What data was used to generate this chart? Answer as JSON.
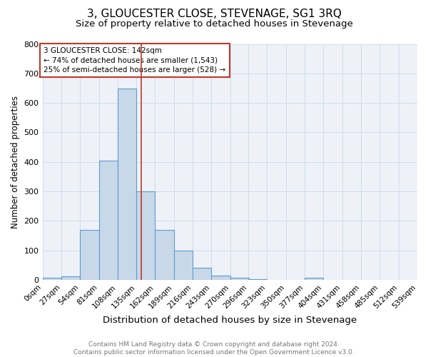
{
  "title": "3, GLOUCESTER CLOSE, STEVENAGE, SG1 3RQ",
  "subtitle": "Size of property relative to detached houses in Stevenage",
  "xlabel": "Distribution of detached houses by size in Stevenage",
  "ylabel": "Number of detached properties",
  "bin_edges": [
    0,
    27,
    54,
    81,
    108,
    135,
    162,
    189,
    216,
    243,
    270,
    296,
    323,
    350,
    377,
    404,
    431,
    458,
    485,
    512,
    539
  ],
  "bar_heights": [
    8,
    13,
    170,
    405,
    648,
    300,
    170,
    98,
    42,
    15,
    8,
    3,
    0,
    0,
    7,
    0,
    0,
    0,
    0,
    0
  ],
  "bar_color": "#c8d8e8",
  "bar_edge_color": "#5b9bd5",
  "property_size": 142,
  "vline_color": "#c0392b",
  "annotation_line1": "3 GLOUCESTER CLOSE: 142sqm",
  "annotation_line2": "← 74% of detached houses are smaller (1,543)",
  "annotation_line3": "25% of semi-detached houses are larger (528) →",
  "annotation_box_color": "#c0392b",
  "ylim": [
    0,
    800
  ],
  "yticks": [
    0,
    100,
    200,
    300,
    400,
    500,
    600,
    700,
    800
  ],
  "grid_color": "#d0dce8",
  "background_color": "#eef2f8",
  "footer_text": "Contains HM Land Registry data © Crown copyright and database right 2024.\nContains public sector information licensed under the Open Government Licence v3.0.",
  "title_fontsize": 11,
  "subtitle_fontsize": 9.5,
  "xlabel_fontsize": 9.5,
  "ylabel_fontsize": 8.5,
  "annotation_fontsize": 7.5,
  "footer_fontsize": 6.5,
  "tick_fontsize": 7.5,
  "ytick_fontsize": 8
}
